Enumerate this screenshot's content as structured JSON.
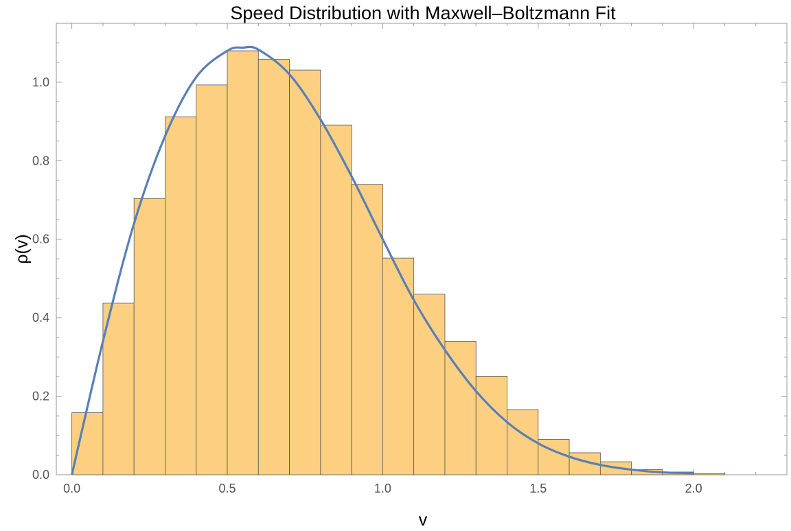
{
  "chart_data": {
    "type": "bar",
    "title": "Speed Distribution with Maxwell–Boltzmann Fit",
    "xlabel": "v",
    "ylabel": "ρ(v)",
    "xlim": [
      -0.05,
      2.3
    ],
    "ylim": [
      0,
      1.15
    ],
    "x_ticks": [
      {
        "value": 0.0,
        "label": "0.0"
      },
      {
        "value": 0.5,
        "label": "0.5"
      },
      {
        "value": 1.0,
        "label": "1.0"
      },
      {
        "value": 1.5,
        "label": "1.5"
      },
      {
        "value": 2.0,
        "label": "2.0"
      }
    ],
    "y_ticks": [
      {
        "value": 0.0,
        "label": "0.0"
      },
      {
        "value": 0.2,
        "label": "0.2"
      },
      {
        "value": 0.4,
        "label": "0.4"
      },
      {
        "value": 0.6,
        "label": "0.6"
      },
      {
        "value": 0.8,
        "label": "0.8"
      },
      {
        "value": 1.0,
        "label": "1.0"
      }
    ],
    "bin_width": 0.1,
    "bins": [
      {
        "start": 0.0,
        "value": 0.158
      },
      {
        "start": 0.1,
        "value": 0.437
      },
      {
        "start": 0.2,
        "value": 0.704
      },
      {
        "start": 0.3,
        "value": 0.912
      },
      {
        "start": 0.4,
        "value": 0.993
      },
      {
        "start": 0.5,
        "value": 1.08
      },
      {
        "start": 0.6,
        "value": 1.058
      },
      {
        "start": 0.7,
        "value": 1.031
      },
      {
        "start": 0.8,
        "value": 0.891
      },
      {
        "start": 0.9,
        "value": 0.74
      },
      {
        "start": 1.0,
        "value": 0.552
      },
      {
        "start": 1.1,
        "value": 0.46
      },
      {
        "start": 1.2,
        "value": 0.34
      },
      {
        "start": 1.3,
        "value": 0.251
      },
      {
        "start": 1.4,
        "value": 0.166
      },
      {
        "start": 1.5,
        "value": 0.09
      },
      {
        "start": 1.6,
        "value": 0.056
      },
      {
        "start": 1.7,
        "value": 0.033
      },
      {
        "start": 1.8,
        "value": 0.013
      },
      {
        "start": 1.9,
        "value": 0.007
      },
      {
        "start": 2.0,
        "value": 0.003
      }
    ],
    "fit_curve": {
      "type": "line",
      "x": [
        0.0,
        0.1,
        0.2,
        0.3,
        0.4,
        0.5,
        0.55,
        0.6,
        0.7,
        0.8,
        0.9,
        1.0,
        1.1,
        1.2,
        1.3,
        1.4,
        1.5,
        1.6,
        1.7,
        1.8,
        1.9,
        2.0
      ],
      "y": [
        0.0,
        0.34,
        0.64,
        0.863,
        1.013,
        1.08,
        1.088,
        1.083,
        1.02,
        0.905,
        0.76,
        0.6,
        0.445,
        0.318,
        0.213,
        0.134,
        0.08,
        0.046,
        0.025,
        0.013,
        0.006,
        0.004
      ]
    },
    "colors": {
      "bar_fill": "#fcd080",
      "bar_stroke": "#555555",
      "curve": "#5a7fb5"
    },
    "grid": false,
    "legend": "none"
  }
}
